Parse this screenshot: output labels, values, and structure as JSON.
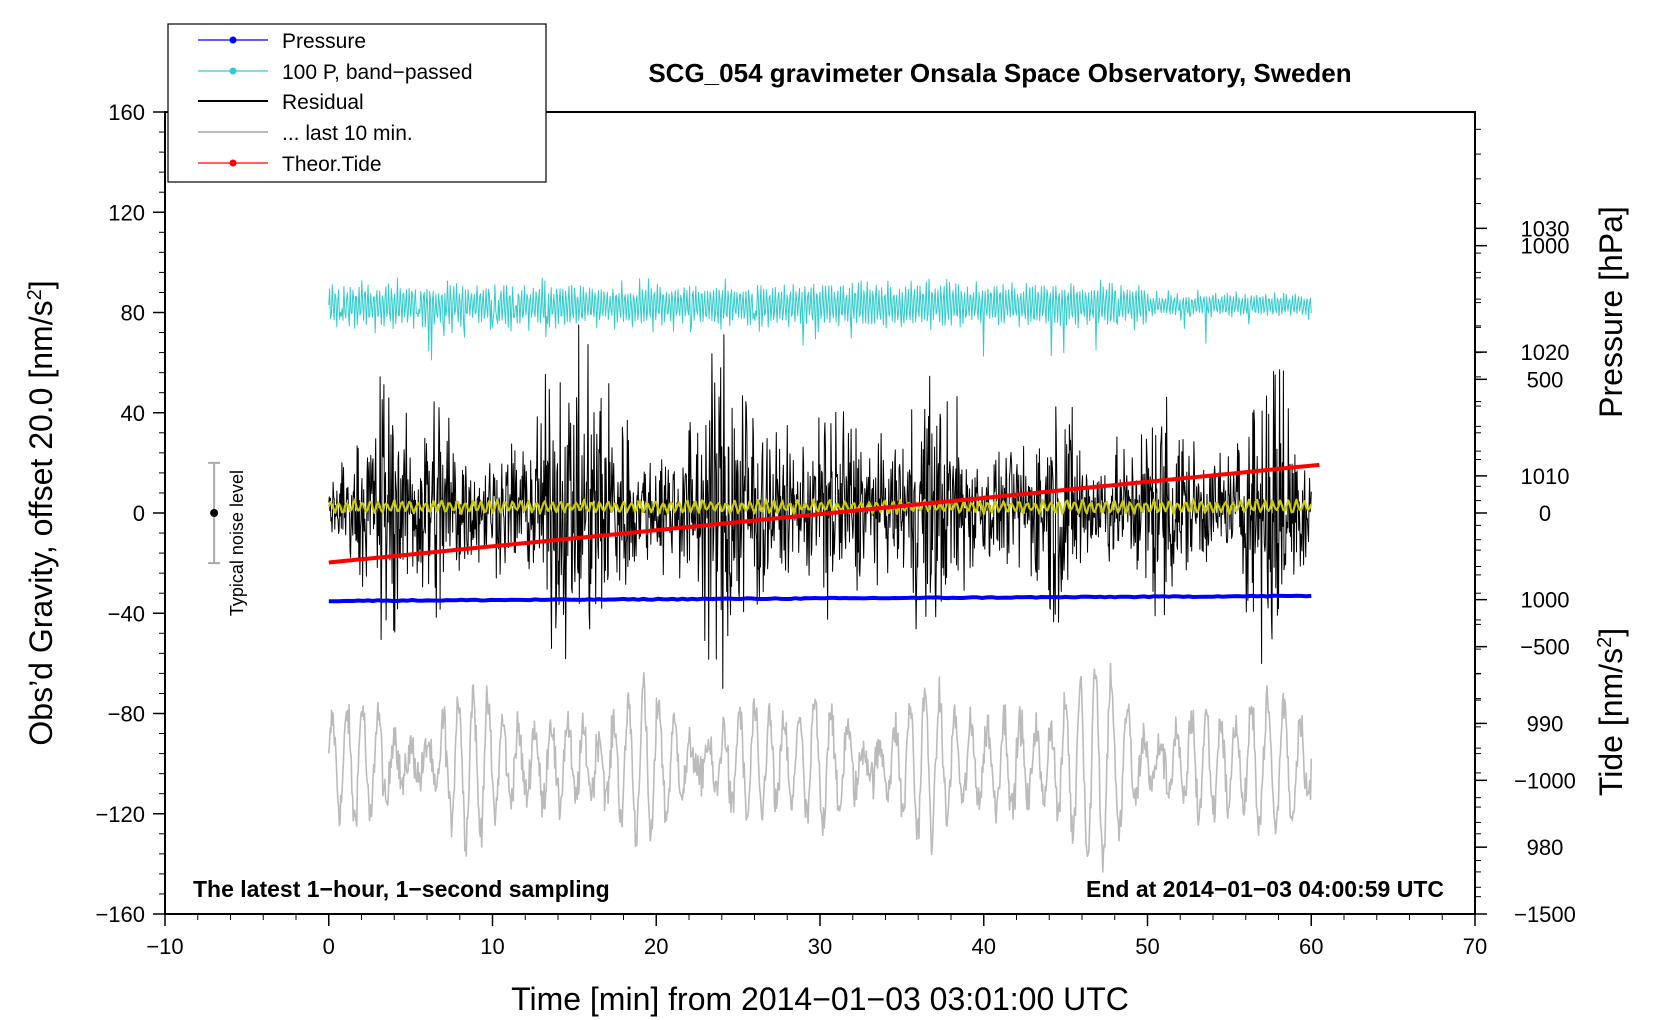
{
  "chart_data": {
    "type": "line",
    "title": "SCG_054 gravimeter Onsala Space Observatory, Sweden",
    "xlabel": "Time [min] from 2014−01−03 03:01:00 UTC",
    "ylabel_left": "Obs’d Gravity, offset 20.0 [nm/s",
    "ylabel_left_sup": "2",
    "ylabel_left_end": "]",
    "ylabel_right_pressure": "Pressure [hPa]",
    "ylabel_right_tide": "Tide [nm/s",
    "ylabel_right_tide_sup": "2",
    "ylabel_right_tide_end": "]",
    "xlim": [
      -10,
      70
    ],
    "ylim": [
      -160,
      160
    ],
    "pressure_lim": [
      974.6,
      1039.4
    ],
    "tide_lim": [
      -1500,
      1500
    ],
    "x_ticks": [
      -10,
      0,
      10,
      20,
      30,
      40,
      50,
      60,
      70
    ],
    "x_tick_labels": [
      "−10",
      "0",
      "10",
      "20",
      "30",
      "40",
      "50",
      "60",
      "70"
    ],
    "y_ticks": [
      -160,
      -120,
      -80,
      -40,
      0,
      40,
      80,
      120,
      160
    ],
    "y_tick_labels": [
      "−160",
      "−120",
      "−80",
      "−40",
      "0",
      "40",
      "80",
      "120",
      "160"
    ],
    "pressure_ticks": [
      980,
      990,
      1000,
      1010,
      1020,
      1030
    ],
    "pressure_tick_labels": [
      "980",
      "990",
      "1000",
      "1010",
      "1020",
      "1030"
    ],
    "tide_ticks": [
      -1500,
      -1000,
      -500,
      0,
      500,
      1000
    ],
    "tide_tick_labels": [
      "−1500",
      "−1000",
      "−500",
      "0",
      "500",
      "1000"
    ],
    "annotation_left": "The latest 1−hour, 1−second sampling",
    "annotation_right": "End at 2014−01−03 04:00:59 UTC",
    "noise_bar": {
      "x": -7,
      "center": 0,
      "low": -20,
      "high": 20,
      "label": "Typical noise level"
    },
    "legend": [
      {
        "label": "Pressure",
        "color": "#0000ff",
        "marker": true
      },
      {
        "label": "100 P, band−passed",
        "color": "#33cccc",
        "marker": true
      },
      {
        "label": "Residual",
        "color": "#000000",
        "marker": false
      },
      {
        "label": "... last 10 min.",
        "color": "#bbbbbb",
        "marker": false
      },
      {
        "label": "Theor.Tide",
        "color": "#ff0000",
        "marker": true
      }
    ],
    "series": [
      {
        "name": "Pressure",
        "color": "#0000ff",
        "axis": "pressure",
        "x_range": [
          0,
          60
        ],
        "start": 999.9,
        "end": 1000.3
      },
      {
        "name": "100 P, band-passed",
        "color": "#33cccc",
        "axis": "left",
        "x_range": [
          0,
          60
        ],
        "center": 83,
        "amplitude": 8
      },
      {
        "name": "Residual",
        "color": "#000000",
        "axis": "left",
        "x_range": [
          0,
          60
        ],
        "center": 2,
        "amplitude": 25
      },
      {
        "name": "Smoothed residual",
        "color": "#cccc00",
        "axis": "left",
        "x_range": [
          0,
          60
        ],
        "center": 2.5,
        "amplitude": 2
      },
      {
        "name": "... last 10 min.",
        "color": "#bbbbbb",
        "axis": "left",
        "x_range": [
          0,
          60
        ],
        "center": -100,
        "amplitude": 25
      },
      {
        "name": "Theor.Tide",
        "color": "#ff0000",
        "axis": "tide",
        "x_range": [
          0,
          60.5
        ],
        "start": -185,
        "end": 180
      }
    ]
  }
}
